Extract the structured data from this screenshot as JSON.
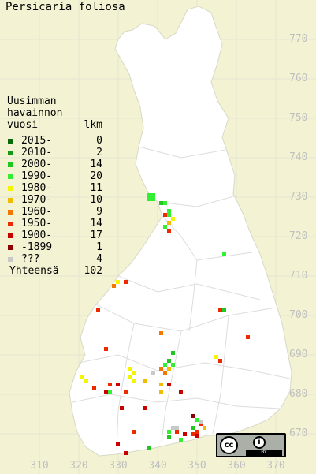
{
  "title": "Persicaria foliosa",
  "legend": {
    "heading": [
      "Uusimman",
      "havainnon"
    ],
    "col_year": "vuosi",
    "col_count": "lkm",
    "rows": [
      {
        "label": "2015-",
        "count": "0",
        "color": "#0a6a0a"
      },
      {
        "label": "2010-",
        "count": "2",
        "color": "#139a13"
      },
      {
        "label": "2000-",
        "count": "14",
        "color": "#1ec81e"
      },
      {
        "label": "1990-",
        "count": "20",
        "color": "#33ee33"
      },
      {
        "label": "1980-",
        "count": "11",
        "color": "#f5f500"
      },
      {
        "label": "1970-",
        "count": "10",
        "color": "#f0bc00"
      },
      {
        "label": "1960-",
        "count": "9",
        "color": "#f07800"
      },
      {
        "label": "1950-",
        "count": "14",
        "color": "#ec2a00"
      },
      {
        "label": "1900-",
        "count": "17",
        "color": "#c80000"
      },
      {
        "label": "-1899",
        "count": "1",
        "color": "#8c0000"
      },
      {
        "label": "???",
        "count": "4",
        "color": "#c8c8c8"
      }
    ],
    "total_label": "Yhteensä",
    "total_count": "102"
  },
  "axis": {
    "y_labels": [
      "770",
      "760",
      "750",
      "740",
      "730",
      "720",
      "710",
      "700",
      "690",
      "680",
      "670"
    ],
    "x_labels": [
      "310",
      "320",
      "330",
      "340",
      "350",
      "360",
      "370"
    ]
  },
  "license": {
    "cc": "cc",
    "by_icon": "i",
    "by_text": "BY"
  },
  "colors": {
    "background": "#f3f3d3",
    "land": "#ffffff",
    "grid": "#e2e2e2",
    "border": "#c8c8c8"
  }
}
